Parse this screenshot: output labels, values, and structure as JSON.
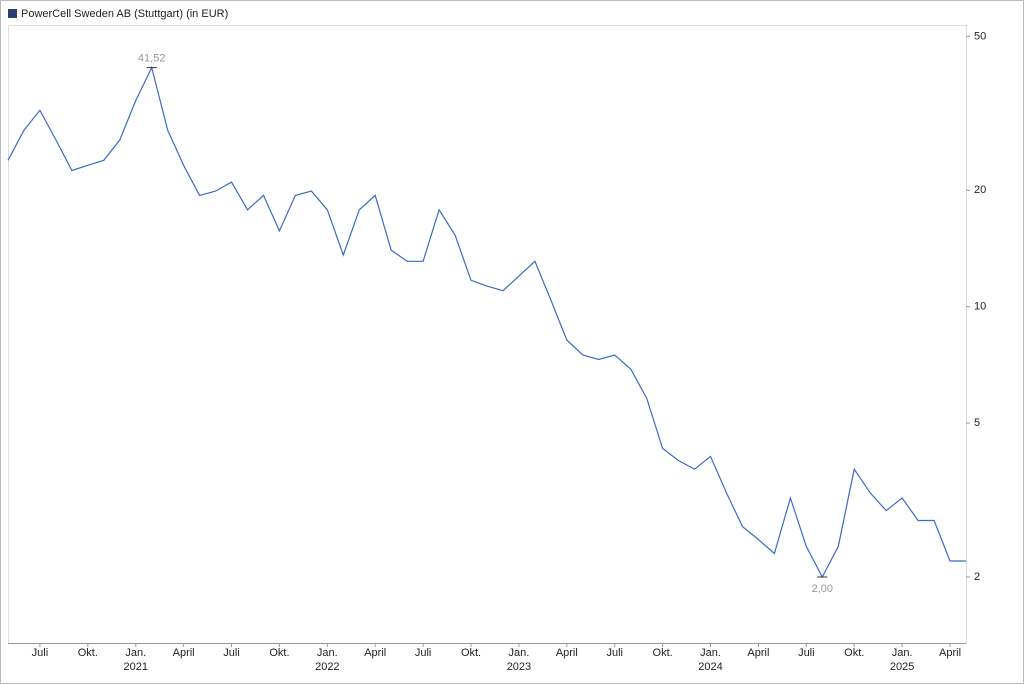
{
  "chart_data": {
    "type": "line",
    "title": "PowerCell Sweden AB (Stuttgart) (in EUR)",
    "legend_color": "#2b3f73",
    "x": [
      "2020-05",
      "2020-06",
      "2020-07",
      "2020-08",
      "2020-09",
      "2020-10",
      "2020-11",
      "2020-12",
      "2021-01",
      "2021-02",
      "2021-03",
      "2021-04",
      "2021-05",
      "2021-06",
      "2021-07",
      "2021-08",
      "2021-09",
      "2021-10",
      "2021-11",
      "2021-12",
      "2022-01",
      "2022-02",
      "2022-03",
      "2022-04",
      "2022-05",
      "2022-06",
      "2022-07",
      "2022-08",
      "2022-09",
      "2022-10",
      "2022-11",
      "2022-12",
      "2023-01",
      "2023-02",
      "2023-03",
      "2023-04",
      "2023-05",
      "2023-06",
      "2023-07",
      "2023-08",
      "2023-09",
      "2023-10",
      "2023-11",
      "2023-12",
      "2024-01",
      "2024-02",
      "2024-03",
      "2024-04",
      "2024-05",
      "2024-06",
      "2024-07",
      "2024-08",
      "2024-09",
      "2024-10",
      "2024-11",
      "2024-12",
      "2025-01",
      "2025-02",
      "2025-03",
      "2025-04",
      "2025-05"
    ],
    "series": [
      {
        "name": "PowerCell Sweden AB (Stuttgart)",
        "color": "#3a6bc8",
        "values": [
          23.9,
          28.6,
          32.2,
          27,
          22.5,
          23.2,
          23.9,
          27,
          34.1,
          41.52,
          28.6,
          23.2,
          19.4,
          19.9,
          21,
          17.8,
          19.4,
          15.7,
          19.4,
          19.9,
          17.8,
          13.6,
          17.8,
          19.4,
          14,
          13.1,
          13.1,
          17.8,
          15.3,
          11.7,
          11.3,
          11,
          12,
          13.1,
          10.4,
          8.2,
          7.5,
          7.3,
          7.5,
          6.9,
          5.8,
          4.3,
          4,
          3.8,
          4.1,
          3.3,
          2.7,
          2.5,
          2.3,
          3.2,
          2.4,
          2.0,
          2.4,
          3.8,
          3.3,
          2.97,
          3.2,
          2.8,
          2.8,
          2.2,
          2.2
        ]
      }
    ],
    "annotations": [
      {
        "x": "2021-02",
        "value": 41.52,
        "label": "41,52"
      },
      {
        "x": "2024-08",
        "value": 2.0,
        "label": "2,00"
      }
    ],
    "log_scale": true,
    "xlim": [
      "2020-05",
      "2025-05"
    ],
    "ylim": [
      1.35,
      53.5
    ],
    "yticks": [
      2,
      5,
      10,
      20,
      50
    ],
    "xticks": [
      {
        "value": "2020-07",
        "label": "Juli"
      },
      {
        "value": "2020-10",
        "label": "Okt."
      },
      {
        "value": "2021-01",
        "label": "Jan."
      },
      {
        "value": "2021-04",
        "label": "April"
      },
      {
        "value": "2021-07",
        "label": "Juli"
      },
      {
        "value": "2021-10",
        "label": "Okt."
      },
      {
        "value": "2022-01",
        "label": "Jan."
      },
      {
        "value": "2022-04",
        "label": "April"
      },
      {
        "value": "2022-07",
        "label": "Juli"
      },
      {
        "value": "2022-10",
        "label": "Okt."
      },
      {
        "value": "2023-01",
        "label": "Jan."
      },
      {
        "value": "2023-04",
        "label": "April"
      },
      {
        "value": "2023-07",
        "label": "Juli"
      },
      {
        "value": "2023-10",
        "label": "Okt."
      },
      {
        "value": "2024-01",
        "label": "Jan."
      },
      {
        "value": "2024-04",
        "label": "April"
      },
      {
        "value": "2024-07",
        "label": "Juli"
      },
      {
        "value": "2024-10",
        "label": "Okt."
      },
      {
        "value": "2025-01",
        "label": "Jan."
      },
      {
        "value": "2025-04",
        "label": "April"
      }
    ],
    "year_labels": [
      {
        "value": "2021-01",
        "label": "2021"
      },
      {
        "value": "2022-01",
        "label": "2022"
      },
      {
        "value": "2023-01",
        "label": "2023"
      },
      {
        "value": "2024-01",
        "label": "2024"
      },
      {
        "value": "2025-01",
        "label": "2025"
      }
    ]
  }
}
